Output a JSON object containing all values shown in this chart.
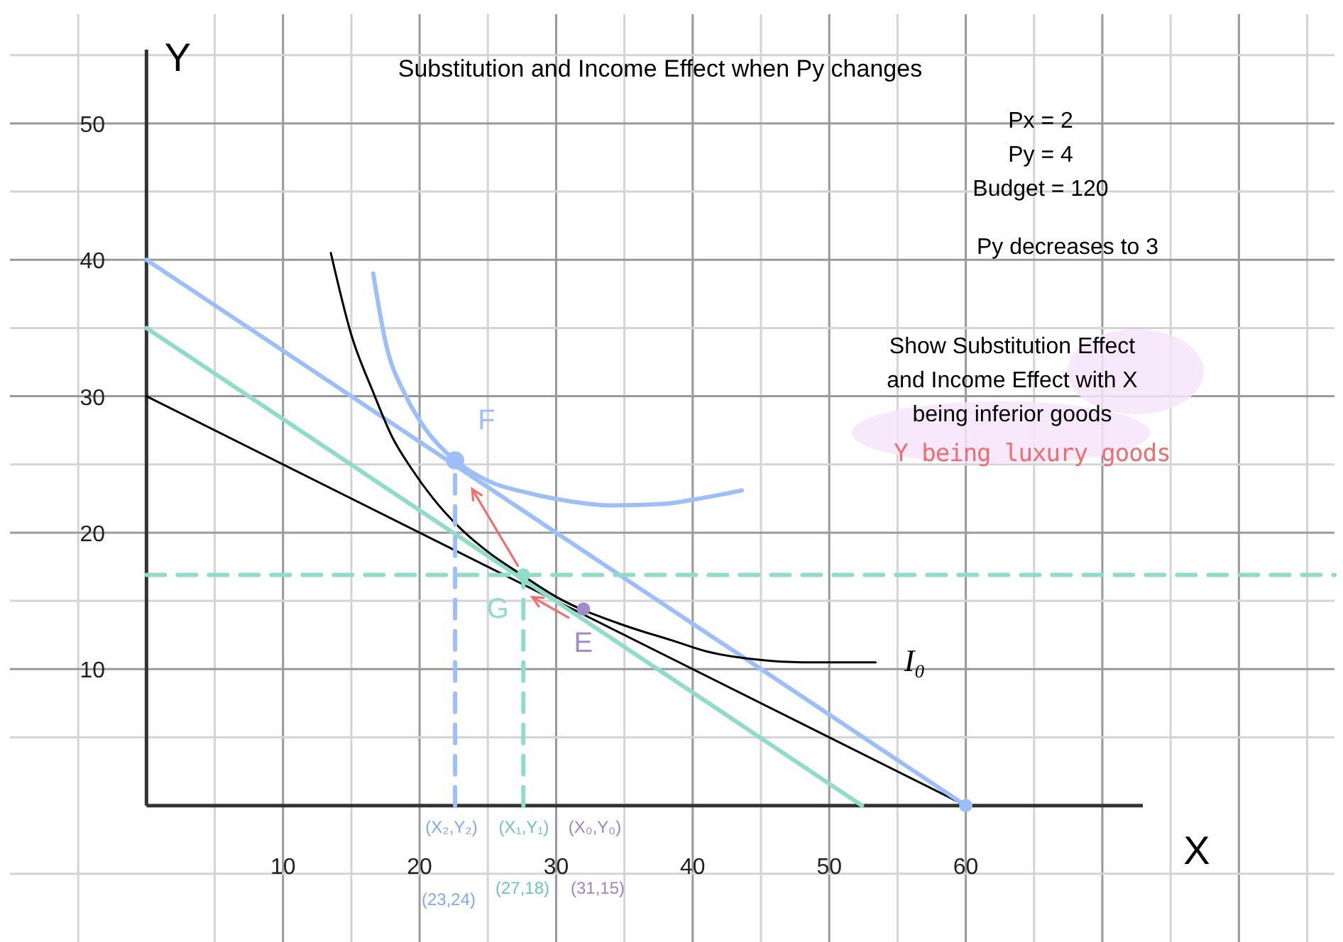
{
  "chart_data": {
    "type": "line",
    "title": "Substitution and Income Effect when Py changes",
    "xlabel": "X",
    "ylabel": "Y",
    "xlim": [
      -10,
      87
    ],
    "ylim": [
      -10,
      58
    ],
    "xticks": [
      {
        "value": -5,
        "label": null
      },
      {
        "value": 5,
        "label": null
      },
      10,
      {
        "value": 15,
        "label": null
      },
      20,
      {
        "value": 25,
        "label": null
      },
      30,
      {
        "value": 35,
        "label": null
      },
      40,
      {
        "value": 45,
        "label": null
      },
      50,
      {
        "value": 55,
        "label": null
      },
      60,
      {
        "value": 65,
        "label": null
      },
      {
        "value": 70,
        "label": null
      },
      {
        "value": 75,
        "label": null
      },
      {
        "value": 80,
        "label": null
      },
      {
        "value": 85,
        "label": null
      }
    ],
    "yticks": [
      {
        "value": -5,
        "label": null
      },
      {
        "value": 5,
        "label": null
      },
      10,
      {
        "value": 15,
        "label": null
      },
      20,
      {
        "value": 25,
        "label": null
      },
      30,
      {
        "value": 35,
        "label": null
      },
      40,
      {
        "value": 45,
        "label": null
      },
      50,
      {
        "value": 55,
        "label": null
      }
    ],
    "grid": true,
    "series": [
      {
        "color": "#000000",
        "x": [
          0,
          60
        ],
        "values": [
          30,
          0
        ]
      },
      {
        "color": "#9dbff9",
        "x": [
          0,
          60
        ],
        "values": [
          40,
          0
        ]
      },
      {
        "color": "#8fdcc8",
        "x": [
          0,
          52.4
        ],
        "values": [
          35,
          0
        ]
      },
      {
        "name": "I₀",
        "color": "#000000",
        "x": [
          13.5,
          15,
          16.6,
          18,
          19.4,
          21,
          23,
          25,
          27.5,
          30,
          35,
          38.5,
          41,
          44.7,
          48,
          53.4
        ],
        "values": [
          40.5,
          34.5,
          30.3,
          27,
          24.7,
          22.5,
          20.3,
          18.6,
          16.9,
          15.3,
          13.2,
          12.1,
          11.3,
          10.7,
          10.5,
          10.5
        ]
      },
      {
        "color": "#9dbff9",
        "x": [
          16.6,
          17.5,
          19,
          20.5,
          22.6,
          25,
          28,
          31,
          34,
          37.8,
          40.5,
          43.6
        ],
        "values": [
          39,
          34,
          30,
          27.5,
          25.3,
          23.8,
          22.9,
          22.3,
          22,
          22.1,
          22.5,
          23.1
        ]
      },
      {
        "color": "#9dbff9",
        "line_style": "dashed",
        "x": [
          22.6,
          22.6
        ],
        "values": [
          0,
          25.3
        ]
      },
      {
        "color": "#8fdcc8",
        "line_style": "dashed",
        "x": [
          27.6,
          27.6
        ],
        "values": [
          0,
          16.9
        ]
      },
      {
        "color": "#8fdcc8",
        "line_style": "dashed",
        "x": [
          0,
          87
        ],
        "values": [
          16.9,
          16.9
        ]
      },
      {
        "type": "scatter",
        "marker": "circle",
        "name": "F",
        "color": "#9dbff9",
        "x": [
          22.6
        ],
        "values": [
          25.3
        ]
      },
      {
        "type": "scatter",
        "marker": "circle",
        "name": "G",
        "color": "#8fdcc8",
        "x": [
          27.6
        ],
        "values": [
          16.9
        ]
      },
      {
        "type": "scatter",
        "marker": "circle",
        "name": "E",
        "color": "#a08cc8",
        "x": [
          32
        ],
        "values": [
          14.4
        ]
      },
      {
        "type": "scatter",
        "marker": "circle",
        "color": "#9dbff9",
        "x": [
          60
        ],
        "values": [
          0
        ]
      }
    ],
    "annotations": [
      "Px = 2",
      "Py = 4",
      "Budget = 120",
      "Py  decreases to 3",
      "Show Substitution Effect and Income Effect with X being inferior goods",
      "Y being luxury goods",
      "(X₂,Y₂)",
      "(23,24)",
      "(X₁,Y₁)",
      "(27,18)",
      "(X₀,Y₀)",
      "(31,15)"
    ]
  }
}
